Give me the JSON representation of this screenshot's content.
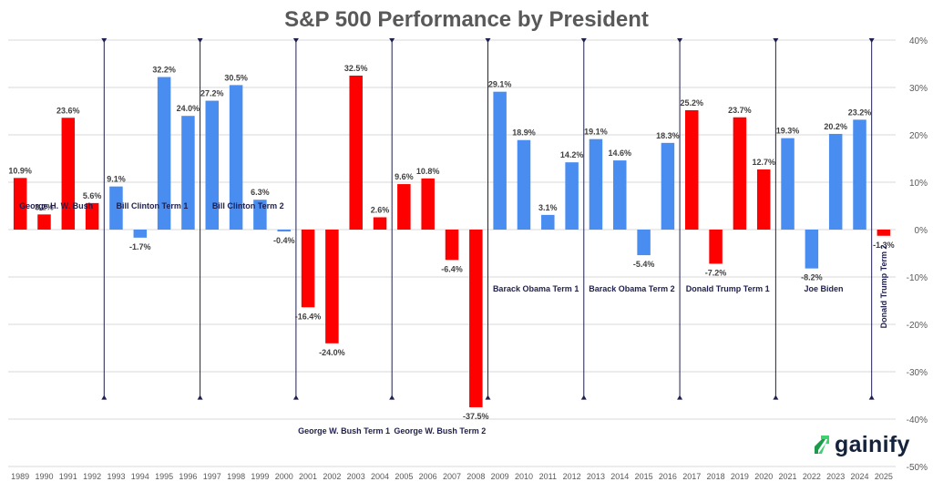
{
  "chart_data": {
    "type": "bar",
    "title": "S&P 500 Performance by President",
    "xlabel": "",
    "ylabel": "",
    "ylim": [
      -50,
      40
    ],
    "yticks": [
      -50,
      -40,
      -30,
      -20,
      -10,
      0,
      10,
      20,
      30,
      40
    ],
    "ytick_labels": [
      "-50%",
      "-40%",
      "-30%",
      "-20%",
      "-10%",
      "0%",
      "10%",
      "20%",
      "30%",
      "40%"
    ],
    "y_axis_side": "right",
    "grid": true,
    "categories": [
      "1989",
      "1990",
      "1991",
      "1992",
      "1993",
      "1994",
      "1995",
      "1996",
      "1997",
      "1998",
      "1999",
      "2000",
      "2001",
      "2002",
      "2003",
      "2004",
      "2005",
      "2006",
      "2007",
      "2008",
      "2009",
      "2010",
      "2011",
      "2012",
      "2013",
      "2014",
      "2015",
      "2016",
      "2017",
      "2018",
      "2019",
      "2020",
      "2021",
      "2022",
      "2023",
      "2024",
      "2025"
    ],
    "values": [
      10.9,
      3.2,
      23.6,
      5.6,
      9.1,
      -1.7,
      32.2,
      24.0,
      27.2,
      30.5,
      6.3,
      -0.4,
      -16.4,
      -24.0,
      32.5,
      2.6,
      9.6,
      10.8,
      -6.4,
      -37.5,
      29.1,
      18.9,
      3.1,
      14.2,
      19.1,
      14.6,
      -5.4,
      18.3,
      25.2,
      -7.2,
      23.7,
      12.7,
      19.3,
      -8.2,
      20.2,
      23.2,
      -1.3
    ],
    "value_labels": [
      "10.9%",
      "3.2%",
      "23.6%",
      "5.6%",
      "9.1%",
      "-1.7%",
      "32.2%",
      "24.0%",
      "27.2%",
      "30.5%",
      "6.3%",
      "-0.4%",
      "-16.4%",
      "-24.0%",
      "32.5%",
      "2.6%",
      "9.6%",
      "10.8%",
      "-6.4%",
      "-37.5%",
      "29.1%",
      "18.9%",
      "3.1%",
      "14.2%",
      "19.1%",
      "14.6%",
      "-5.4%",
      "18.3%",
      "25.2%",
      "-7.2%",
      "23.7%",
      "12.7%",
      "19.3%",
      "-8.2%",
      "20.2%",
      "23.2%",
      "-1.3%"
    ],
    "bar_party": [
      "R",
      "R",
      "R",
      "R",
      "D",
      "D",
      "D",
      "D",
      "D",
      "D",
      "D",
      "D",
      "R",
      "R",
      "R",
      "R",
      "R",
      "R",
      "R",
      "R",
      "D",
      "D",
      "D",
      "D",
      "D",
      "D",
      "D",
      "D",
      "R",
      "R",
      "R",
      "R",
      "D",
      "D",
      "D",
      "D",
      "R"
    ],
    "party_colors": {
      "R": "#ff0000",
      "D": "#4a8df0"
    },
    "terms": [
      {
        "name": "George H. W. Bush",
        "start": "1989",
        "end": "1992",
        "label_level": 5
      },
      {
        "name": "Bill Clinton Term 1",
        "start": "1993",
        "end": "1996",
        "label_level": 5
      },
      {
        "name": "Bill Clinton Term 2",
        "start": "1997",
        "end": "2000",
        "label_level": 5
      },
      {
        "name": "George W. Bush Term 1",
        "start": "2001",
        "end": "2004",
        "label_level": -42.5
      },
      {
        "name": "George W. Bush Term 2",
        "start": "2005",
        "end": "2008",
        "label_level": -42.5
      },
      {
        "name": "Barack Obama Term 1",
        "start": "2009",
        "end": "2012",
        "label_level": -12.5
      },
      {
        "name": "Barack Obama Term 2",
        "start": "2013",
        "end": "2016",
        "label_level": -12.5
      },
      {
        "name": "Donald Trump Term 1",
        "start": "2017",
        "end": "2020",
        "label_level": -12.5
      },
      {
        "name": "Joe Biden",
        "start": "2021",
        "end": "2024",
        "label_level": -12.5
      },
      {
        "name": "Donald Trump Term 2",
        "start": "2025",
        "end": "2025",
        "label_level": -12,
        "vertical": true
      }
    ],
    "term_boundary_range": [
      -35.5,
      40
    ]
  },
  "brand": {
    "name": "gainify",
    "colors": {
      "text": "#14233b",
      "green_dark": "#1f9a4c",
      "green_light": "#3fd16e"
    }
  },
  "colors": {
    "title": "#595959",
    "axis_text": "#595959",
    "grid": "#d9d9d9",
    "divider": "#1f1f4d",
    "value_label": "#404040",
    "term_label": "#1f1f4d"
  }
}
